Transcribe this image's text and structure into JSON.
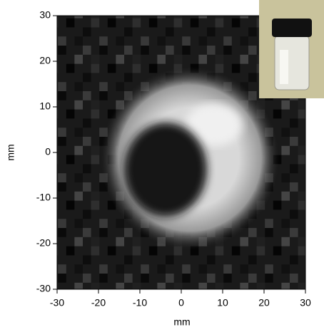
{
  "chart_data": {
    "type": "image",
    "x_label": "mm",
    "y_label": "mm",
    "xlim": [
      -30,
      30
    ],
    "ylim": [
      -30,
      30
    ],
    "xticks": [
      -30,
      -20,
      -10,
      0,
      10,
      20,
      30
    ],
    "yticks": [
      -30,
      -20,
      -10,
      0,
      10,
      20,
      30
    ]
  }
}
